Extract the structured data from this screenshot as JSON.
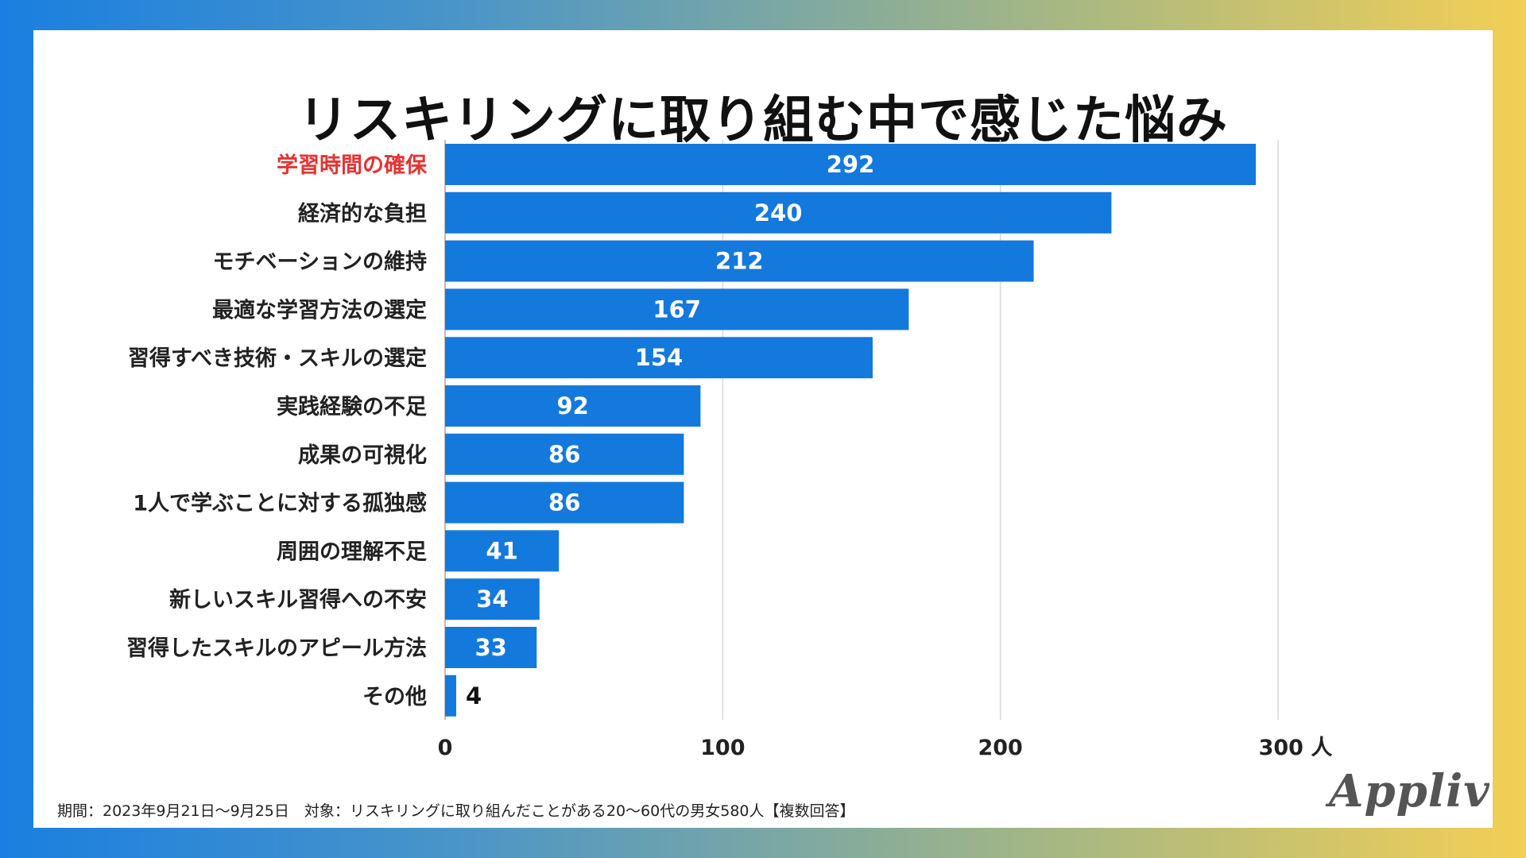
{
  "page": {
    "title": "リスキリングに取り組む中で感じた悩み",
    "footnote": "期間：2023年9月21日〜9月25日　対象：リスキリングに取り組んだことがある20〜60代の男女580人【複数回答】",
    "logo": "Appliv"
  },
  "colors": {
    "bar": "#1479dc",
    "highlight_label": "#e83232",
    "label": "#222222",
    "grid": "#d8d8d8",
    "value_inside": "#ffffff",
    "value_outside": "#111111"
  },
  "chart_data": {
    "type": "bar",
    "orientation": "horizontal",
    "title": "リスキリングに取り組む中で感じた悩み",
    "categories": [
      "学習時間の確保",
      "経済的な負担",
      "モチベーションの維持",
      "最適な学習方法の選定",
      "習得すべき技術・スキルの選定",
      "実践経験の不足",
      "成果の可視化",
      "1人で学ぶことに対する孤独感",
      "周囲の理解不足",
      "新しいスキル習得への不安",
      "習得したスキルのアピール方法",
      "その他"
    ],
    "values": [
      292,
      240,
      212,
      167,
      154,
      92,
      86,
      86,
      41,
      34,
      33,
      4
    ],
    "highlight_index": 0,
    "xlim": [
      0,
      300
    ],
    "xticks": [
      0,
      100,
      200,
      300
    ],
    "xtick_labels": [
      "0",
      "100",
      "200",
      "300 人"
    ],
    "grid": true,
    "legend": "none"
  }
}
